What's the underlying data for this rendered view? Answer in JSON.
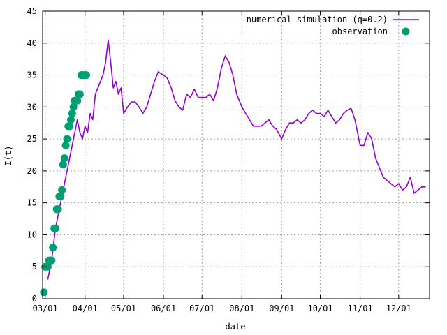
{
  "chart_data": {
    "type": "line",
    "xlabel": "date",
    "ylabel": "I(t)",
    "ylim": [
      0,
      45
    ],
    "xlim": [
      "02-28",
      "12-25"
    ],
    "grid": true,
    "legend_position": "top-right",
    "y_ticks": [
      0,
      5,
      10,
      15,
      20,
      25,
      30,
      35,
      40,
      45
    ],
    "x_ticks": [
      {
        "date": "03-01",
        "label": "03/01"
      },
      {
        "date": "04-01",
        "label": "04/01"
      },
      {
        "date": "05-01",
        "label": "05/01"
      },
      {
        "date": "06-01",
        "label": "06/01"
      },
      {
        "date": "07-01",
        "label": "07/01"
      },
      {
        "date": "08-01",
        "label": "08/01"
      },
      {
        "date": "09-01",
        "label": "09/01"
      },
      {
        "date": "10-01",
        "label": "10/01"
      },
      {
        "date": "11-01",
        "label": "11/01"
      },
      {
        "date": "12-01",
        "label": "12/01"
      }
    ],
    "series": [
      {
        "name": "numerical simulation (q=0.2)",
        "kind": "line",
        "color": "#9400d3",
        "points": [
          [
            "03-03",
            3
          ],
          [
            "03-06",
            6
          ],
          [
            "03-09",
            11
          ],
          [
            "03-12",
            14
          ],
          [
            "03-15",
            17
          ],
          [
            "03-18",
            20
          ],
          [
            "03-21",
            23
          ],
          [
            "03-24",
            26
          ],
          [
            "03-26",
            28
          ],
          [
            "03-28",
            26
          ],
          [
            "03-30",
            25
          ],
          [
            "04-01",
            27
          ],
          [
            "04-03",
            26
          ],
          [
            "04-05",
            29
          ],
          [
            "04-07",
            28
          ],
          [
            "04-09",
            32
          ],
          [
            "04-11",
            33
          ],
          [
            "04-13",
            34
          ],
          [
            "04-15",
            35
          ],
          [
            "04-17",
            37
          ],
          [
            "04-19",
            40.5
          ],
          [
            "04-21",
            37
          ],
          [
            "04-23",
            33
          ],
          [
            "04-25",
            34
          ],
          [
            "04-27",
            32
          ],
          [
            "04-29",
            33
          ],
          [
            "05-01",
            29
          ],
          [
            "05-04",
            30
          ],
          [
            "05-07",
            30.8
          ],
          [
            "05-10",
            30.8
          ],
          [
            "05-13",
            30
          ],
          [
            "05-16",
            29
          ],
          [
            "05-19",
            30
          ],
          [
            "05-22",
            32
          ],
          [
            "05-25",
            34
          ],
          [
            "05-28",
            35.5
          ],
          [
            "06-01",
            35
          ],
          [
            "06-04",
            34.5
          ],
          [
            "06-07",
            33
          ],
          [
            "06-10",
            31
          ],
          [
            "06-13",
            30
          ],
          [
            "06-16",
            29.5
          ],
          [
            "06-19",
            32
          ],
          [
            "06-22",
            31.5
          ],
          [
            "06-25",
            32.8
          ],
          [
            "06-28",
            31.5
          ],
          [
            "07-01",
            31.5
          ],
          [
            "07-04",
            31.5
          ],
          [
            "07-07",
            32
          ],
          [
            "07-10",
            31
          ],
          [
            "07-13",
            33
          ],
          [
            "07-16",
            36
          ],
          [
            "07-19",
            38
          ],
          [
            "07-22",
            37
          ],
          [
            "07-25",
            35
          ],
          [
            "07-28",
            32
          ],
          [
            "08-01",
            30
          ],
          [
            "08-04",
            29
          ],
          [
            "08-07",
            28
          ],
          [
            "08-10",
            27
          ],
          [
            "08-13",
            27
          ],
          [
            "08-16",
            27
          ],
          [
            "08-19",
            27.5
          ],
          [
            "08-22",
            28
          ],
          [
            "08-25",
            27
          ],
          [
            "08-28",
            26.5
          ],
          [
            "09-01",
            25
          ],
          [
            "09-04",
            26.5
          ],
          [
            "09-07",
            27.5
          ],
          [
            "09-10",
            27.5
          ],
          [
            "09-13",
            28
          ],
          [
            "09-16",
            27.5
          ],
          [
            "09-19",
            28
          ],
          [
            "09-22",
            29
          ],
          [
            "09-25",
            29.5
          ],
          [
            "09-28",
            29
          ],
          [
            "10-01",
            29
          ],
          [
            "10-04",
            28.5
          ],
          [
            "10-07",
            29.5
          ],
          [
            "10-10",
            28.5
          ],
          [
            "10-13",
            27.5
          ],
          [
            "10-16",
            28
          ],
          [
            "10-19",
            29
          ],
          [
            "10-22",
            29.5
          ],
          [
            "10-25",
            29.8
          ],
          [
            "10-28",
            28
          ],
          [
            "11-01",
            24
          ],
          [
            "11-04",
            24
          ],
          [
            "11-07",
            26
          ],
          [
            "11-10",
            25
          ],
          [
            "11-13",
            22
          ],
          [
            "11-16",
            20.5
          ],
          [
            "11-19",
            19
          ],
          [
            "11-22",
            18.5
          ],
          [
            "11-25",
            18
          ],
          [
            "11-28",
            17.5
          ],
          [
            "12-01",
            18
          ],
          [
            "12-04",
            17
          ],
          [
            "12-07",
            17.5
          ],
          [
            "12-10",
            19
          ],
          [
            "12-13",
            16.5
          ],
          [
            "12-16",
            17
          ],
          [
            "12-19",
            17.5
          ],
          [
            "12-22",
            17.5
          ]
        ]
      },
      {
        "name": "observation",
        "kind": "points",
        "color": "#009e73",
        "points": [
          [
            "02-29",
            1
          ],
          [
            "03-01",
            5
          ],
          [
            "03-02",
            5
          ],
          [
            "03-03",
            5
          ],
          [
            "03-04",
            6
          ],
          [
            "03-05",
            6
          ],
          [
            "03-06",
            6
          ],
          [
            "03-07",
            8
          ],
          [
            "03-08",
            11
          ],
          [
            "03-09",
            11
          ],
          [
            "03-10",
            14
          ],
          [
            "03-11",
            14
          ],
          [
            "03-12",
            16
          ],
          [
            "03-13",
            16
          ],
          [
            "03-14",
            17
          ],
          [
            "03-15",
            21
          ],
          [
            "03-16",
            22
          ],
          [
            "03-17",
            24
          ],
          [
            "03-18",
            25
          ],
          [
            "03-19",
            27
          ],
          [
            "03-20",
            27
          ],
          [
            "03-21",
            28
          ],
          [
            "03-22",
            29
          ],
          [
            "03-23",
            30
          ],
          [
            "03-24",
            31
          ],
          [
            "03-25",
            31
          ],
          [
            "03-26",
            31
          ],
          [
            "03-27",
            32
          ],
          [
            "03-28",
            32
          ],
          [
            "03-29",
            35
          ],
          [
            "03-30",
            35
          ],
          [
            "03-31",
            35
          ],
          [
            "04-01",
            35
          ],
          [
            "04-02",
            35
          ]
        ]
      }
    ]
  }
}
